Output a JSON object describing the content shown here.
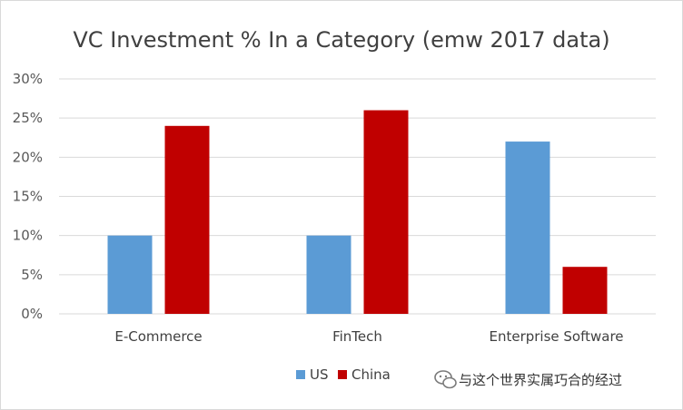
{
  "chart_data": {
    "type": "bar",
    "title": "VC Investment % In a Category (emw 2017 data)",
    "categories": [
      "E-Commerce",
      "FinTech",
      "Enterprise Software"
    ],
    "series": [
      {
        "name": "US",
        "values": [
          10,
          10,
          22
        ],
        "color": "#5b9bd5"
      },
      {
        "name": "China",
        "values": [
          24,
          26,
          6
        ],
        "color": "#c00000"
      }
    ],
    "y_ticks": [
      "0%",
      "5%",
      "10%",
      "15%",
      "20%",
      "25%",
      "30%"
    ],
    "ylim": [
      0,
      30
    ],
    "grid": true,
    "legend_position": "bottom"
  },
  "watermark": {
    "text": "与这个世界实属巧合的经过",
    "icon": "wechat-icon"
  }
}
